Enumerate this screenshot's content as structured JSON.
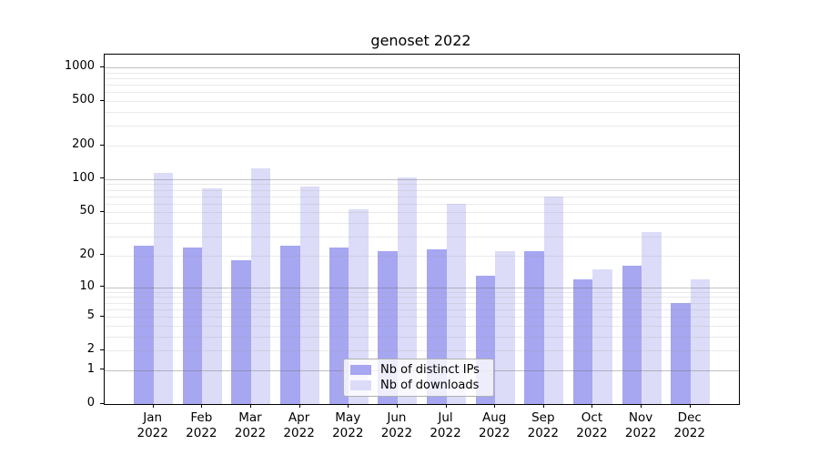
{
  "chart_data": {
    "type": "bar",
    "title": "genoset 2022",
    "categories": [
      "Jan 2022",
      "Feb 2022",
      "Mar 2022",
      "Apr 2022",
      "May 2022",
      "Jun 2022",
      "Jul 2022",
      "Aug 2022",
      "Sep 2022",
      "Oct 2022",
      "Nov 2022",
      "Dec 2022"
    ],
    "series": [
      {
        "name": "Nb of distinct IPs",
        "color": "#a6a6f1",
        "values": [
          25,
          24,
          18,
          25,
          24,
          22,
          23,
          13,
          22,
          12,
          16,
          7
        ]
      },
      {
        "name": "Nb of downloads",
        "color": "#dcdcf8",
        "values": [
          113,
          82,
          125,
          86,
          53,
          103,
          60,
          22,
          70,
          15,
          33,
          12
        ]
      }
    ],
    "xlabel": "",
    "ylabel": "",
    "y_scale": "log10(1+x)",
    "y_ticks": [
      0,
      1,
      2,
      5,
      10,
      20,
      50,
      100,
      200,
      500,
      1000
    ],
    "ylim": [
      0,
      1310
    ],
    "grid": "horizontal major+minor, drawn above bars",
    "legend_position": "lower center inside plot"
  }
}
